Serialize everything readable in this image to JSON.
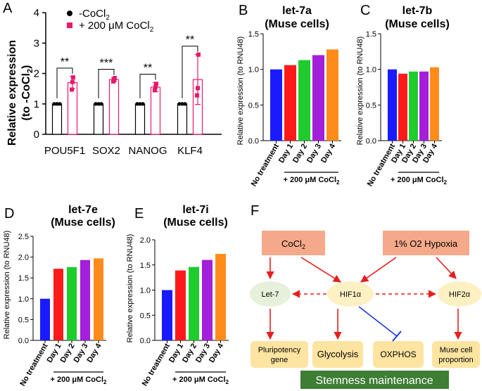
{
  "colors": {
    "blue": "#1a1aff",
    "red": "#ff1a1a",
    "green": "#1fcc2e",
    "purple": "#a31fd9",
    "orange": "#ff8c1a",
    "pink": "#e8196b",
    "box_fill": "#f4a98a",
    "oval_fill": "#e6f0da",
    "hif_fill": "#fdf0c2",
    "outcome_fill": "#fde4a0",
    "stem_fill": "#3d7d34",
    "arrow_red": "#e81e1e",
    "inhibit_blue": "#1a3ad9"
  },
  "chart_data": [
    {
      "id": "A",
      "panel_label": "A",
      "type": "bar",
      "title": "",
      "ylabel_line1": "Relative expression",
      "ylabel_line2": "(to -CoCl",
      "ylabel_sub": "2",
      "ylabel_end": ")",
      "ylim": [
        0,
        4
      ],
      "yticks": [
        "0",
        "1",
        "2",
        "3",
        "4"
      ],
      "categories": [
        "POU5F1",
        "SOX2",
        "NANOG",
        "KLF4"
      ],
      "legend": [
        {
          "label": "-CoCl",
          "sub": "2"
        },
        {
          "label": "+ 200 μM CoCl",
          "sub": "2"
        }
      ],
      "series": [
        {
          "name": "-CoCl2",
          "values": [
            1.0,
            1.0,
            1.0,
            1.0
          ],
          "errors": [
            0,
            0,
            0,
            0
          ],
          "points": [
            [
              1.0,
              1.0,
              1.0
            ],
            [
              1.0,
              1.0,
              1.0
            ],
            [
              1.0,
              1.0,
              1.0
            ],
            [
              1.0,
              1.0,
              1.0
            ]
          ]
        },
        {
          "name": "+ 200 μM CoCl2",
          "values": [
            1.7,
            1.8,
            1.55,
            1.8
          ],
          "errors": [
            0.2,
            0.06,
            0.15,
            0.82
          ],
          "points": [
            [
              1.87,
              1.72,
              1.47
            ],
            [
              1.85,
              1.78,
              1.74
            ],
            [
              1.66,
              1.56,
              1.45
            ],
            [
              2.62,
              1.52,
              1.28
            ]
          ]
        }
      ],
      "significance": [
        "**",
        "***",
        "**",
        "**"
      ]
    },
    {
      "id": "B",
      "panel_label": "B",
      "type": "bar",
      "title_line1": "let-7a",
      "title_line2": "(Muse cells)",
      "ylabel": "Relative expression (to RNU48)",
      "ylim": [
        0,
        1.5
      ],
      "yticks": [
        "0.0",
        "0.5",
        "1.0",
        "1.5"
      ],
      "categories": [
        "No treatment",
        "Day 1",
        "Day 2",
        "Day 3",
        "Day 4"
      ],
      "values": [
        1.0,
        1.06,
        1.13,
        1.2,
        1.28
      ],
      "bracket_label": "+ 200 μM CoCl",
      "bracket_sub": "2"
    },
    {
      "id": "C",
      "panel_label": "C",
      "type": "bar",
      "title_line1": "let-7b",
      "title_line2": "(Muse cells)",
      "ylabel": "Relative expression (to RNU48)",
      "ylim": [
        0,
        1.5
      ],
      "yticks": [
        "0.0",
        "0.5",
        "1.0",
        "1.5"
      ],
      "categories": [
        "No treatment",
        "Day 1",
        "Day 2",
        "Day 3",
        "Day 4"
      ],
      "values": [
        1.0,
        0.94,
        0.97,
        0.97,
        1.03
      ],
      "bracket_label": "+ 200 μM CoCl",
      "bracket_sub": "2"
    },
    {
      "id": "D",
      "panel_label": "D",
      "type": "bar",
      "title_line1": "let-7e",
      "title_line2": "(Muse cells)",
      "ylabel": "Relative expression (to RNU48)",
      "ylim": [
        0,
        2.5
      ],
      "yticks": [
        "0.0",
        "0.5",
        "1.0",
        "1.5",
        "2.0",
        "2.5"
      ],
      "categories": [
        "No treatment",
        "Day 1",
        "Day 2",
        "Day 3",
        "Day 4"
      ],
      "values": [
        1.0,
        1.72,
        1.76,
        1.93,
        1.97
      ],
      "bracket_label": "+ 200 μM CoCl",
      "bracket_sub": "2"
    },
    {
      "id": "E",
      "panel_label": "E",
      "type": "bar",
      "title_line1": "let-7i",
      "title_line2": "(Muse cells)",
      "ylabel": "Relative expression (to RNU48)",
      "ylim": [
        0,
        2.0
      ],
      "yticks": [
        "0.0",
        "0.5",
        "1.0",
        "1.5",
        "2.0"
      ],
      "categories": [
        "No treatment",
        "Day 1",
        "Day 2",
        "Day 3",
        "Day 4"
      ],
      "values": [
        1.0,
        1.39,
        1.46,
        1.6,
        1.72
      ],
      "bracket_label": "+ 200 μM CoCl",
      "bracket_sub": "2"
    }
  ],
  "diagram": {
    "panel_label": "F",
    "cocl2": {
      "label": "CoCl",
      "sub": "2"
    },
    "hypoxia": "1% O2 Hypoxia",
    "let7": "Let-7",
    "hif1a": "HIF1α",
    "hif2a": "HIF2α",
    "pluripotency_line1": "Pluripotency",
    "pluripotency_line2": "gene",
    "glycolysis": "Glycolysis",
    "oxphos": "OXPHOS",
    "muse_line1": "Muse cell",
    "muse_line2": "proportion",
    "stemness": "Stemness maintenance"
  }
}
